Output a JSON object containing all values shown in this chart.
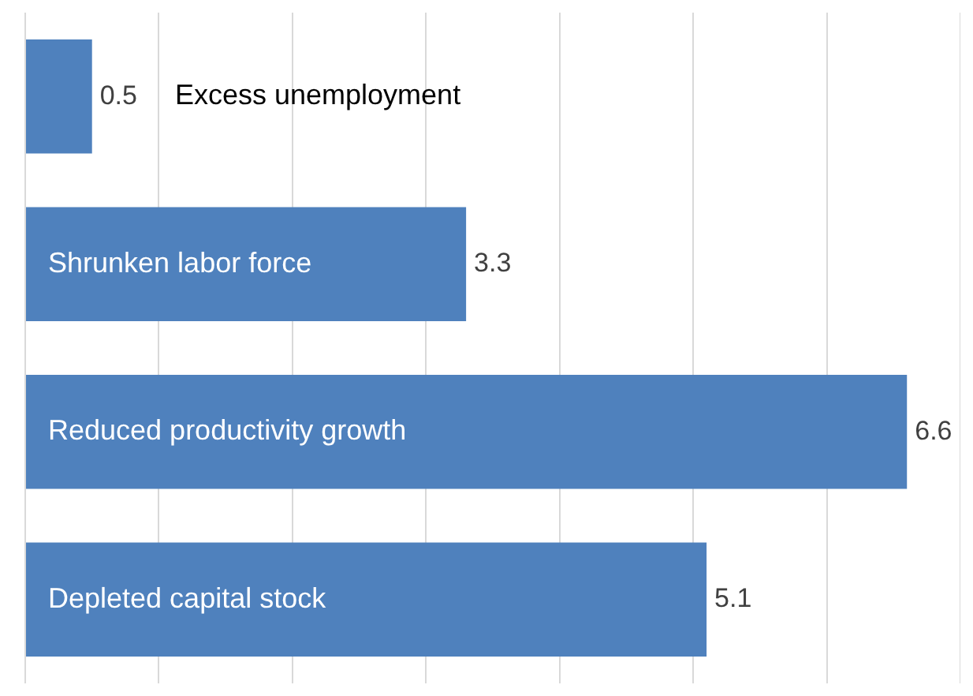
{
  "chart_data": {
    "type": "bar",
    "orientation": "horizontal",
    "categories": [
      "Excess unemployment",
      "Shrunken labor force",
      "Reduced productivity growth",
      "Depleted capital stock"
    ],
    "values": [
      0.5,
      3.3,
      6.6,
      5.1
    ],
    "color": "#4f81bd",
    "xlim": [
      0,
      7
    ],
    "xticks": [
      {
        "value": 0,
        "label": null
      },
      {
        "value": 1,
        "label": null
      },
      {
        "value": 2,
        "label": null
      },
      {
        "value": 3,
        "label": null
      },
      {
        "value": 4,
        "label": null
      },
      {
        "value": 5,
        "label": null
      },
      {
        "value": 6,
        "label": null
      },
      {
        "value": 7,
        "label": null
      }
    ],
    "grid": "x",
    "tick_labels": false,
    "data_labels": true,
    "legend": false
  }
}
